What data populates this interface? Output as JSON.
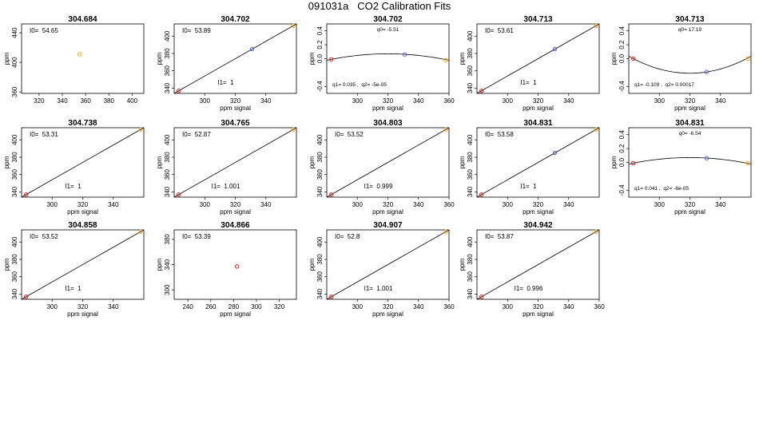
{
  "figure": {
    "title": "091031a   CO2 Calibration Fits"
  },
  "colors": {
    "frame": "#000000",
    "fit_line": "#000000",
    "low": "#e00000",
    "mid": "#5050e0",
    "high": "#f0a000"
  },
  "chart_data": [
    {
      "type": "scatter",
      "title": "304.684",
      "xlabel": "",
      "ylabel": "ppm",
      "xlim": [
        305,
        410
      ],
      "ylim": [
        358,
        452
      ],
      "xticks": [
        {
          "v": 320,
          "label": "320"
        },
        {
          "v": 340,
          "label": "340"
        },
        {
          "v": 360,
          "label": "360"
        },
        {
          "v": 380,
          "label": "380"
        },
        {
          "v": 400,
          "label": "400"
        }
      ],
      "yticks": [
        {
          "v": 360,
          "label": "360"
        },
        {
          "v": 400,
          "label": "400"
        },
        {
          "v": 440,
          "label": "440"
        }
      ],
      "points": [
        {
          "x": 355,
          "y": 411,
          "color": "high"
        }
      ],
      "annotations": [
        {
          "text": "I0=  54.65",
          "pos": "top-left"
        }
      ]
    },
    {
      "type": "line",
      "title": "304.702",
      "xlabel": "ppm signal",
      "ylabel": "ppm",
      "xlim": [
        280,
        360
      ],
      "ylim": [
        334,
        414
      ],
      "xticks": [
        {
          "v": 300,
          "label": "300"
        },
        {
          "v": 320,
          "label": "320"
        },
        {
          "v": 340,
          "label": "340"
        }
      ],
      "yticks": [
        {
          "v": 340,
          "label": "340"
        },
        {
          "v": 360,
          "label": "360"
        },
        {
          "v": 380,
          "label": "380"
        },
        {
          "v": 400,
          "label": "400"
        }
      ],
      "line": {
        "x0": 280,
        "y0": 334,
        "x1": 360,
        "y1": 414
      },
      "points": [
        {
          "x": 283,
          "y": 337,
          "color": "low"
        },
        {
          "x": 331,
          "y": 385,
          "color": "mid"
        },
        {
          "x": 358,
          "y": 412,
          "color": "high"
        }
      ],
      "annotations": [
        {
          "text": "I0=  53.89",
          "pos": "top-left"
        },
        {
          "text": "I1=  1",
          "pos": "bottom-center"
        }
      ]
    },
    {
      "type": "line",
      "title": "304.702",
      "xlabel": "ppm signal",
      "ylabel": "ppm",
      "xlim": [
        280,
        360
      ],
      "ylim": [
        -0.5,
        0.5
      ],
      "xticks": [
        {
          "v": 300,
          "label": "300"
        },
        {
          "v": 320,
          "label": "320"
        },
        {
          "v": 340,
          "label": "340"
        },
        {
          "v": 360,
          "label": "360"
        }
      ],
      "yticks": [
        {
          "v": -0.4,
          "label": "-0.4"
        },
        {
          "v": 0,
          "label": "0.0"
        },
        {
          "v": 0.2,
          "label": "0.2"
        },
        {
          "v": 0.4,
          "label": "0.4"
        }
      ],
      "curve": {
        "vertex_x": 320,
        "vertex_y": 0.07,
        "end_x": 283,
        "end_y": -0.01
      },
      "points": [
        {
          "x": 283,
          "y": -0.01,
          "color": "low"
        },
        {
          "x": 331,
          "y": 0.06,
          "color": "mid"
        },
        {
          "x": 358,
          "y": -0.02,
          "color": "high"
        }
      ],
      "annotations": [
        {
          "text": "q0= -5.51",
          "pos": "top-center",
          "small": true
        },
        {
          "text": "q1= 0.035 ,  q2= -5e-05",
          "pos": "bottom-left",
          "small": true
        }
      ]
    },
    {
      "type": "line",
      "title": "304.713",
      "xlabel": "ppm signal",
      "ylabel": "ppm",
      "xlim": [
        280,
        360
      ],
      "ylim": [
        334,
        414
      ],
      "xticks": [
        {
          "v": 300,
          "label": "300"
        },
        {
          "v": 320,
          "label": "320"
        },
        {
          "v": 340,
          "label": "340"
        }
      ],
      "yticks": [
        {
          "v": 340,
          "label": "340"
        },
        {
          "v": 360,
          "label": "360"
        },
        {
          "v": 380,
          "label": "380"
        },
        {
          "v": 400,
          "label": "400"
        }
      ],
      "line": {
        "x0": 280,
        "y0": 334,
        "x1": 360,
        "y1": 414
      },
      "points": [
        {
          "x": 283,
          "y": 337,
          "color": "low"
        },
        {
          "x": 331,
          "y": 385,
          "color": "mid"
        },
        {
          "x": 358,
          "y": 412,
          "color": "high"
        }
      ],
      "annotations": [
        {
          "text": "I0=  53.61",
          "pos": "top-left"
        },
        {
          "text": "I1=  1",
          "pos": "bottom-center"
        }
      ]
    },
    {
      "type": "line",
      "title": "304.713",
      "xlabel": "ppm signal",
      "ylabel": "ppm",
      "xlim": [
        280,
        360
      ],
      "ylim": [
        -0.5,
        0.5
      ],
      "xticks": [
        {
          "v": 300,
          "label": "300"
        },
        {
          "v": 320,
          "label": "320"
        },
        {
          "v": 340,
          "label": "340"
        }
      ],
      "yticks": [
        {
          "v": -0.4,
          "label": "-0.4"
        },
        {
          "v": 0,
          "label": "0.0"
        },
        {
          "v": 0.2,
          "label": "0.2"
        },
        {
          "v": 0.4,
          "label": "0.4"
        }
      ],
      "curve": {
        "vertex_x": 320,
        "vertex_y": -0.21,
        "end_x": 283,
        "end_y": 0.0
      },
      "points": [
        {
          "x": 283,
          "y": 0.0,
          "color": "low"
        },
        {
          "x": 331,
          "y": -0.19,
          "color": "mid"
        },
        {
          "x": 358,
          "y": 0.0,
          "color": "high"
        }
      ],
      "annotations": [
        {
          "text": "q0= 17.19",
          "pos": "top-center",
          "small": true
        },
        {
          "text": "q1= -0.109 ,  q2= 0.00017",
          "pos": "bottom-left",
          "small": true
        }
      ]
    },
    {
      "type": "line",
      "title": "304.738",
      "xlabel": "ppm signal",
      "ylabel": "ppm",
      "xlim": [
        280,
        360
      ],
      "ylim": [
        334,
        414
      ],
      "xticks": [
        {
          "v": 300,
          "label": "300"
        },
        {
          "v": 320,
          "label": "320"
        },
        {
          "v": 340,
          "label": "340"
        }
      ],
      "yticks": [
        {
          "v": 340,
          "label": "340"
        },
        {
          "v": 360,
          "label": "360"
        },
        {
          "v": 380,
          "label": "380"
        },
        {
          "v": 400,
          "label": "400"
        }
      ],
      "line": {
        "x0": 280,
        "y0": 334,
        "x1": 360,
        "y1": 414
      },
      "points": [
        {
          "x": 283,
          "y": 337,
          "color": "low"
        },
        {
          "x": 358,
          "y": 412,
          "color": "high"
        }
      ],
      "annotations": [
        {
          "text": "I0=  53.31",
          "pos": "top-left"
        },
        {
          "text": "I1=  1",
          "pos": "bottom-center"
        }
      ]
    },
    {
      "type": "line",
      "title": "304.765",
      "xlabel": "ppm signal",
      "ylabel": "ppm",
      "xlim": [
        280,
        360
      ],
      "ylim": [
        334,
        414
      ],
      "xticks": [
        {
          "v": 300,
          "label": "300"
        },
        {
          "v": 320,
          "label": "320"
        },
        {
          "v": 340,
          "label": "340"
        }
      ],
      "yticks": [
        {
          "v": 340,
          "label": "340"
        },
        {
          "v": 360,
          "label": "360"
        },
        {
          "v": 380,
          "label": "380"
        },
        {
          "v": 400,
          "label": "400"
        }
      ],
      "line": {
        "x0": 280,
        "y0": 334,
        "x1": 360,
        "y1": 414
      },
      "points": [
        {
          "x": 283,
          "y": 337,
          "color": "low"
        },
        {
          "x": 358,
          "y": 412,
          "color": "high"
        }
      ],
      "annotations": [
        {
          "text": "I0=  52.87",
          "pos": "top-left"
        },
        {
          "text": "I1=  1.001",
          "pos": "bottom-center"
        }
      ]
    },
    {
      "type": "line",
      "title": "304.803",
      "xlabel": "ppm signal",
      "ylabel": "ppm",
      "xlim": [
        280,
        360
      ],
      "ylim": [
        334,
        414
      ],
      "xticks": [
        {
          "v": 300,
          "label": "300"
        },
        {
          "v": 320,
          "label": "320"
        },
        {
          "v": 340,
          "label": "340"
        },
        {
          "v": 360,
          "label": "360"
        }
      ],
      "yticks": [
        {
          "v": 340,
          "label": "340"
        },
        {
          "v": 360,
          "label": "360"
        },
        {
          "v": 380,
          "label": "380"
        },
        {
          "v": 400,
          "label": "400"
        }
      ],
      "line": {
        "x0": 280,
        "y0": 334,
        "x1": 360,
        "y1": 414
      },
      "points": [
        {
          "x": 283,
          "y": 337,
          "color": "low"
        },
        {
          "x": 358,
          "y": 412,
          "color": "high"
        }
      ],
      "annotations": [
        {
          "text": "I0=  53.52",
          "pos": "top-left"
        },
        {
          "text": "I1=  0.999",
          "pos": "bottom-center"
        }
      ]
    },
    {
      "type": "line",
      "title": "304.831",
      "xlabel": "ppm signal",
      "ylabel": "ppm",
      "xlim": [
        280,
        360
      ],
      "ylim": [
        334,
        414
      ],
      "xticks": [
        {
          "v": 300,
          "label": "300"
        },
        {
          "v": 320,
          "label": "320"
        },
        {
          "v": 340,
          "label": "340"
        }
      ],
      "yticks": [
        {
          "v": 340,
          "label": "340"
        },
        {
          "v": 360,
          "label": "360"
        },
        {
          "v": 380,
          "label": "380"
        },
        {
          "v": 400,
          "label": "400"
        }
      ],
      "line": {
        "x0": 280,
        "y0": 334,
        "x1": 360,
        "y1": 414
      },
      "points": [
        {
          "x": 283,
          "y": 337,
          "color": "low"
        },
        {
          "x": 331,
          "y": 385,
          "color": "mid"
        },
        {
          "x": 358,
          "y": 412,
          "color": "high"
        }
      ],
      "annotations": [
        {
          "text": "I0=  53.58",
          "pos": "top-left"
        },
        {
          "text": "I1=  1",
          "pos": "bottom-center"
        }
      ]
    },
    {
      "type": "line",
      "title": "304.831",
      "xlabel": "ppm signal",
      "ylabel": "ppm",
      "xlim": [
        280,
        360
      ],
      "ylim": [
        -0.5,
        0.5
      ],
      "xticks": [
        {
          "v": 300,
          "label": "300"
        },
        {
          "v": 320,
          "label": "320"
        },
        {
          "v": 340,
          "label": "340"
        }
      ],
      "yticks": [
        {
          "v": -0.4,
          "label": "-0.4"
        },
        {
          "v": 0,
          "label": "0.0"
        },
        {
          "v": 0.2,
          "label": "0.2"
        },
        {
          "v": 0.4,
          "label": "0.4"
        }
      ],
      "curve": {
        "vertex_x": 320,
        "vertex_y": 0.07,
        "end_x": 283,
        "end_y": -0.01
      },
      "points": [
        {
          "x": 283,
          "y": -0.01,
          "color": "low"
        },
        {
          "x": 331,
          "y": 0.06,
          "color": "mid"
        },
        {
          "x": 358,
          "y": -0.01,
          "color": "high"
        }
      ],
      "annotations": [
        {
          "text": "q0= -6.54",
          "pos": "top-center",
          "small": true
        },
        {
          "text": "q1= 0.041 ,  q2= -6e-05",
          "pos": "bottom-left",
          "small": true
        }
      ]
    },
    {
      "type": "line",
      "title": "304.858",
      "xlabel": "ppm signal",
      "ylabel": "ppm",
      "xlim": [
        280,
        360
      ],
      "ylim": [
        334,
        414
      ],
      "xticks": [
        {
          "v": 300,
          "label": "300"
        },
        {
          "v": 320,
          "label": "320"
        },
        {
          "v": 340,
          "label": "340"
        }
      ],
      "yticks": [
        {
          "v": 340,
          "label": "340"
        },
        {
          "v": 360,
          "label": "360"
        },
        {
          "v": 380,
          "label": "380"
        },
        {
          "v": 400,
          "label": "400"
        }
      ],
      "line": {
        "x0": 280,
        "y0": 334,
        "x1": 360,
        "y1": 414
      },
      "points": [
        {
          "x": 283,
          "y": 337,
          "color": "low"
        },
        {
          "x": 358,
          "y": 412,
          "color": "high"
        }
      ],
      "annotations": [
        {
          "text": "I0=  53.52",
          "pos": "top-left"
        },
        {
          "text": "I1=  1",
          "pos": "bottom-center"
        }
      ]
    },
    {
      "type": "scatter",
      "title": "304.866",
      "xlabel": "ppm signal",
      "ylabel": "ppm",
      "xlim": [
        228,
        335
      ],
      "ylim": [
        285,
        395
      ],
      "xticks": [
        {
          "v": 240,
          "label": "240"
        },
        {
          "v": 260,
          "label": "260"
        },
        {
          "v": 280,
          "label": "280"
        },
        {
          "v": 300,
          "label": "300"
        },
        {
          "v": 320,
          "label": "320"
        }
      ],
      "yticks": [
        {
          "v": 300,
          "label": "300"
        },
        {
          "v": 340,
          "label": "340"
        },
        {
          "v": 380,
          "label": "380"
        }
      ],
      "points": [
        {
          "x": 283,
          "y": 337,
          "color": "low"
        }
      ],
      "annotations": [
        {
          "text": "I0=  53.39",
          "pos": "top-left"
        }
      ]
    },
    {
      "type": "line",
      "title": "304.907",
      "xlabel": "ppm signal",
      "ylabel": "ppm",
      "xlim": [
        280,
        360
      ],
      "ylim": [
        334,
        414
      ],
      "xticks": [
        {
          "v": 300,
          "label": "300"
        },
        {
          "v": 320,
          "label": "320"
        },
        {
          "v": 340,
          "label": "340"
        },
        {
          "v": 360,
          "label": "360"
        }
      ],
      "yticks": [
        {
          "v": 340,
          "label": "340"
        },
        {
          "v": 360,
          "label": "360"
        },
        {
          "v": 380,
          "label": "380"
        },
        {
          "v": 400,
          "label": "400"
        }
      ],
      "line": {
        "x0": 280,
        "y0": 334,
        "x1": 360,
        "y1": 414
      },
      "points": [
        {
          "x": 283,
          "y": 337,
          "color": "low"
        },
        {
          "x": 358,
          "y": 412,
          "color": "high"
        }
      ],
      "annotations": [
        {
          "text": "I0=  52.8",
          "pos": "top-left"
        },
        {
          "text": "I1=  1.001",
          "pos": "bottom-center"
        }
      ]
    },
    {
      "type": "line",
      "title": "304.942",
      "xlabel": "ppm signal",
      "ylabel": "ppm",
      "xlim": [
        280,
        360
      ],
      "ylim": [
        334,
        414
      ],
      "xticks": [
        {
          "v": 300,
          "label": "300"
        },
        {
          "v": 320,
          "label": "320"
        },
        {
          "v": 340,
          "label": "340"
        },
        {
          "v": 360,
          "label": "360"
        }
      ],
      "yticks": [
        {
          "v": 340,
          "label": "340"
        },
        {
          "v": 360,
          "label": "360"
        },
        {
          "v": 380,
          "label": "380"
        },
        {
          "v": 400,
          "label": "400"
        }
      ],
      "line": {
        "x0": 280,
        "y0": 334,
        "x1": 360,
        "y1": 414
      },
      "points": [
        {
          "x": 283,
          "y": 337,
          "color": "low"
        },
        {
          "x": 358,
          "y": 412,
          "color": "high"
        }
      ],
      "annotations": [
        {
          "text": "I0=  53.87",
          "pos": "top-left"
        },
        {
          "text": "I1=  0.996",
          "pos": "bottom-center"
        }
      ]
    }
  ]
}
